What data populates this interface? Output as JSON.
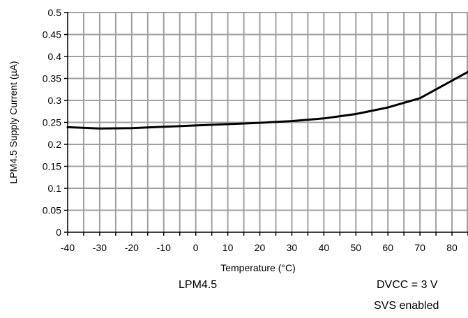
{
  "chart_data": {
    "type": "line",
    "title": "",
    "xlabel": "Temperature (°C)",
    "ylabel": "LPM4.5 Supply Current (µA)",
    "xlim": [
      -40,
      85
    ],
    "ylim": [
      0,
      0.5
    ],
    "x_ticks": [
      -40,
      -30,
      -20,
      -10,
      0,
      10,
      20,
      30,
      40,
      50,
      60,
      70,
      80
    ],
    "x_tick_labels": [
      "-40",
      "-30",
      "-20",
      "-10",
      "0",
      "10",
      "20",
      "30",
      "40",
      "50",
      "60",
      "70",
      "80"
    ],
    "y_ticks": [
      0,
      0.05,
      0.1,
      0.15,
      0.2,
      0.25,
      0.3,
      0.35,
      0.4,
      0.45,
      0.5
    ],
    "y_tick_labels": [
      "0",
      "0.05",
      "0.1",
      "0.15",
      "0.2",
      "0.25",
      "0.3",
      "0.35",
      "0.4",
      "0.45",
      "0.5"
    ],
    "x_minor_step": 5,
    "grid": true,
    "series": [
      {
        "color": "#000000",
        "x": [
          -40,
          -30,
          -20,
          -10,
          0,
          10,
          20,
          30,
          40,
          50,
          60,
          70,
          80,
          85
        ],
        "y": [
          0.239,
          0.236,
          0.237,
          0.24,
          0.243,
          0.246,
          0.249,
          0.253,
          0.259,
          0.269,
          0.284,
          0.305,
          0.345,
          0.365
        ]
      }
    ]
  },
  "annotations": {
    "condition": "LPM4.5",
    "vcc": "DVCC = 3 V",
    "svs": "SVS enabled"
  },
  "colors": {
    "grid": "#a0a0a0",
    "axis": "#000000",
    "line": "#000000"
  }
}
